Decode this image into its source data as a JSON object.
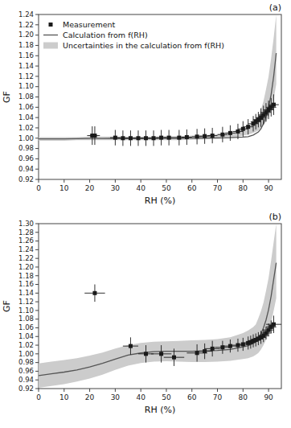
{
  "chart_data": [
    {
      "type": "scatter",
      "title": "(a)",
      "x_label": "RH (%)",
      "y_label": "GF",
      "legend": "upper left",
      "xlim": [
        0,
        95
      ],
      "xticks": [
        0,
        10,
        20,
        30,
        40,
        50,
        60,
        70,
        80,
        90
      ],
      "ylim": [
        0.92,
        1.24
      ],
      "yticks": [
        0.92,
        0.94,
        0.96,
        0.98,
        {
          "value": 1,
          "label": "1.00"
        },
        1.02,
        1.04,
        1.06,
        1.08,
        {
          "value": 1.1,
          "label": "1.10"
        },
        1.12,
        1.14,
        1.16,
        1.18,
        {
          "value": 1.2,
          "label": "1.20"
        },
        1.22,
        1.24
      ],
      "series": [
        {
          "name": "Measurement",
          "type": "scatter",
          "marker": "square",
          "color": "#1a1a1a",
          "x": [
            21,
            22,
            30,
            33,
            36,
            39,
            42,
            45,
            48,
            51,
            55,
            58,
            62,
            65,
            68,
            72,
            75,
            78,
            80,
            82,
            84,
            85,
            86,
            87,
            88,
            89,
            90,
            91,
            92
          ],
          "values": [
            1.005,
            1.005,
            1.001,
            1.0,
            1.0,
            1.0,
            1.0,
            1.0,
            1.001,
            1.001,
            1.001,
            1.002,
            1.003,
            1.004,
            1.005,
            1.007,
            1.01,
            1.013,
            1.018,
            1.022,
            1.028,
            1.032,
            1.036,
            1.04,
            1.045,
            1.05,
            1.055,
            1.06,
            1.065
          ],
          "x_error": [
            2,
            2,
            2,
            2,
            2,
            2,
            2,
            2,
            2,
            2,
            2,
            2,
            2,
            2,
            2,
            2,
            2,
            2,
            2,
            2,
            2,
            2,
            2,
            2,
            2,
            2,
            2,
            2,
            2
          ],
          "error": [
            0.018,
            0.018,
            0.015,
            0.015,
            0.015,
            0.015,
            0.015,
            0.015,
            0.015,
            0.015,
            0.015,
            0.015,
            0.015,
            0.015,
            0.015,
            0.015,
            0.015,
            0.015,
            0.015,
            0.015,
            0.015,
            0.015,
            0.015,
            0.018,
            0.018,
            0.018,
            0.018,
            0.018,
            0.02
          ]
        },
        {
          "name": "Calculation from f(RH)",
          "type": "line",
          "color": "#555555",
          "x": [
            0,
            5,
            10,
            15,
            20,
            25,
            30,
            35,
            40,
            45,
            50,
            55,
            60,
            65,
            70,
            75,
            80,
            82,
            84,
            86,
            87,
            88,
            89,
            90,
            91,
            92,
            93
          ],
          "values": [
            0.9985,
            0.9985,
            0.9985,
            0.999,
            0.9993,
            0.9995,
            0.9996,
            0.9997,
            0.9997,
            0.9997,
            0.9998,
            0.9999,
            1.0001,
            1.0003,
            1.0006,
            1.001,
            1.002,
            1.003,
            1.006,
            1.012,
            1.018,
            1.028,
            1.042,
            1.06,
            1.085,
            1.12,
            1.165
          ]
        },
        {
          "name": "Uncertainties in the calculation from f(RH)",
          "type": "area",
          "color": "#cccccc",
          "x": [
            0,
            5,
            10,
            15,
            20,
            25,
            30,
            35,
            40,
            45,
            50,
            55,
            60,
            65,
            70,
            75,
            80,
            82,
            84,
            86,
            87,
            88,
            89,
            90,
            91,
            92,
            93
          ],
          "upper": [
            1.002,
            1.002,
            1.002,
            1.002,
            1.003,
            1.003,
            1.003,
            1.003,
            1.003,
            1.003,
            1.004,
            1.004,
            1.005,
            1.006,
            1.008,
            1.012,
            1.018,
            1.022,
            1.03,
            1.042,
            1.055,
            1.072,
            1.095,
            1.12,
            1.155,
            1.195,
            1.24
          ],
          "lower": [
            0.995,
            0.995,
            0.995,
            0.996,
            0.996,
            0.996,
            0.996,
            0.996,
            0.996,
            0.996,
            0.996,
            0.996,
            0.997,
            0.9975,
            0.9985,
            1.0,
            1.005,
            1.007,
            1.01,
            1.015,
            1.02,
            1.025,
            1.032,
            1.042,
            1.058,
            1.075,
            1.105
          ]
        }
      ]
    },
    {
      "type": "scatter",
      "title": "(b)",
      "x_label": "RH (%)",
      "y_label": "GF",
      "xlim": [
        0,
        95
      ],
      "xticks": [
        0,
        10,
        20,
        30,
        40,
        50,
        60,
        70,
        80,
        90
      ],
      "ylim": [
        0.92,
        1.3
      ],
      "yticks": [
        0.92,
        0.94,
        0.96,
        0.98,
        {
          "value": 1,
          "label": "1.00"
        },
        1.02,
        1.04,
        1.06,
        1.08,
        {
          "value": 1.1,
          "label": "1.10"
        },
        1.12,
        1.14,
        1.16,
        1.18,
        {
          "value": 1.2,
          "label": "1.20"
        },
        1.22,
        1.24,
        1.26,
        1.28,
        {
          "value": 1.3,
          "label": "1.30"
        }
      ],
      "series": [
        {
          "type": "scatter",
          "marker": "square",
          "color": "#1a1a1a",
          "x": [
            22,
            36,
            42,
            48,
            53,
            62,
            65,
            68,
            72,
            75,
            78,
            80,
            82,
            83,
            84,
            85,
            86,
            87,
            88,
            89,
            90,
            91,
            92
          ],
          "values": [
            1.14,
            1.018,
            1.0,
            1.0,
            0.992,
            1.002,
            1.006,
            1.012,
            1.015,
            1.018,
            1.02,
            1.022,
            1.025,
            1.027,
            1.03,
            1.032,
            1.035,
            1.038,
            1.042,
            1.048,
            1.055,
            1.062,
            1.068
          ],
          "x_error": [
            4,
            3,
            3,
            4,
            4,
            4,
            3,
            3,
            3,
            3,
            3,
            2,
            2,
            2,
            2,
            2,
            2,
            2,
            2,
            2,
            2,
            2,
            3
          ],
          "error": [
            0.02,
            0.02,
            0.02,
            0.02,
            0.02,
            0.02,
            0.018,
            0.018,
            0.015,
            0.015,
            0.015,
            0.015,
            0.015,
            0.015,
            0.015,
            0.015,
            0.015,
            0.015,
            0.015,
            0.015,
            0.015,
            0.015,
            0.02
          ]
        },
        {
          "type": "line",
          "color": "#555555",
          "x": [
            0,
            5,
            10,
            15,
            20,
            25,
            30,
            35,
            40,
            45,
            50,
            55,
            60,
            65,
            70,
            75,
            80,
            82,
            84,
            85,
            86,
            87,
            88,
            89,
            90,
            91,
            92,
            93
          ],
          "values": [
            0.95,
            0.954,
            0.958,
            0.963,
            0.97,
            0.978,
            0.988,
            0.997,
            1.002,
            1.005,
            1.006,
            1.006,
            1.006,
            1.007,
            1.008,
            1.01,
            1.016,
            1.019,
            1.024,
            1.028,
            1.036,
            1.046,
            1.06,
            1.078,
            1.102,
            1.133,
            1.172,
            1.21
          ]
        },
        {
          "type": "area",
          "color": "#cccccc",
          "x": [
            0,
            5,
            10,
            15,
            20,
            25,
            30,
            35,
            40,
            45,
            50,
            55,
            60,
            65,
            70,
            75,
            80,
            82,
            84,
            85,
            86,
            87,
            88,
            89,
            90,
            91,
            92,
            93
          ],
          "upper": [
            0.978,
            0.982,
            0.986,
            0.99,
            0.996,
            1.003,
            1.012,
            1.02,
            1.025,
            1.028,
            1.029,
            1.03,
            1.031,
            1.032,
            1.034,
            1.038,
            1.048,
            1.054,
            1.062,
            1.068,
            1.082,
            1.098,
            1.118,
            1.145,
            1.175,
            1.215,
            1.258,
            1.3
          ],
          "lower": [
            0.922,
            0.926,
            0.93,
            0.936,
            0.943,
            0.952,
            0.963,
            0.973,
            0.979,
            0.982,
            0.983,
            0.982,
            0.981,
            0.981,
            0.982,
            0.984,
            0.988,
            0.99,
            0.994,
            0.998,
            1.002,
            1.01,
            1.02,
            1.032,
            1.048,
            1.072,
            1.1,
            1.128
          ]
        }
      ]
    }
  ]
}
